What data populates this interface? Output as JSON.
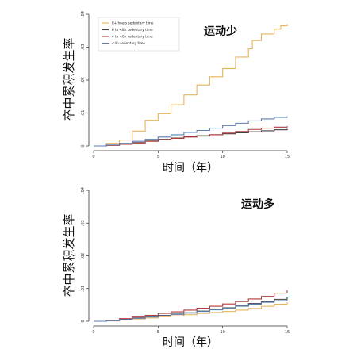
{
  "chart_data": [
    {
      "type": "line",
      "title": "",
      "annotation": "运动少",
      "xlabel": "时间（年）",
      "ylabel": "卒中累积发生率",
      "xlim": [
        0,
        15
      ],
      "ylim": [
        0,
        0.04
      ],
      "xticks": [
        "0",
        "5",
        "10",
        "15"
      ],
      "yticks": [
        "0",
        ".01",
        ".02",
        ".03",
        ".04"
      ],
      "legend_position": "top-left",
      "legend": [
        "8+ hours sedentary time",
        "6 to <8h sedentary time",
        "4 to <6h sedentary time",
        "<4h sedentary time"
      ],
      "series": [
        {
          "name": "8+ hours sedentary time",
          "color": "#e8b45a",
          "x": [
            0,
            1,
            2,
            3,
            4,
            5,
            6,
            7,
            8,
            9,
            10,
            11,
            12,
            12.3,
            13,
            14,
            14.5,
            15
          ],
          "y": [
            0,
            0.0008,
            0.0018,
            0.0045,
            0.0078,
            0.0098,
            0.0125,
            0.0155,
            0.0185,
            0.021,
            0.0235,
            0.027,
            0.0295,
            0.032,
            0.034,
            0.0355,
            0.0365,
            0.037
          ]
        },
        {
          "name": "6 to <8h sedentary time",
          "color": "#3f3f3f",
          "x": [
            0,
            1,
            2,
            3,
            4,
            5,
            6,
            7,
            8,
            9,
            10,
            11,
            12,
            13,
            14,
            15
          ],
          "y": [
            0,
            0.0002,
            0.0006,
            0.001,
            0.0015,
            0.002,
            0.0024,
            0.0028,
            0.0031,
            0.0034,
            0.0037,
            0.004,
            0.0043,
            0.0046,
            0.0049,
            0.0052
          ]
        },
        {
          "name": "4 to <6h sedentary time",
          "color": "#b23a3a",
          "x": [
            0,
            1,
            2,
            3,
            4,
            5,
            6,
            7,
            8,
            9,
            10,
            11,
            12,
            13,
            14,
            15
          ],
          "y": [
            0,
            0.0002,
            0.0005,
            0.0009,
            0.0014,
            0.0019,
            0.0023,
            0.0027,
            0.003,
            0.0034,
            0.0039,
            0.0044,
            0.005,
            0.0054,
            0.0057,
            0.006
          ]
        },
        {
          "name": "<4h sedentary time",
          "color": "#5b7fb0",
          "x": [
            0,
            1,
            2,
            3,
            4,
            5,
            6,
            7,
            8,
            9,
            10,
            11,
            12,
            13,
            14,
            15
          ],
          "y": [
            0,
            0.0003,
            0.0008,
            0.0014,
            0.002,
            0.0027,
            0.0034,
            0.0041,
            0.0047,
            0.0054,
            0.0062,
            0.0069,
            0.0076,
            0.0082,
            0.0087,
            0.009
          ]
        }
      ]
    },
    {
      "type": "line",
      "title": "",
      "annotation": "运动多",
      "xlabel": "时间（年）",
      "ylabel": "卒中累积发生率",
      "xlim": [
        0,
        15
      ],
      "ylim": [
        0,
        0.04
      ],
      "xticks": [
        "0",
        "5",
        "10",
        "15"
      ],
      "yticks": [
        "0",
        ".01",
        ".02",
        ".03",
        ".04"
      ],
      "series": [
        {
          "name": "8+ hours sedentary time",
          "color": "#e8b45a",
          "x": [
            0,
            1,
            2,
            3,
            4,
            5,
            6,
            7,
            8,
            9,
            10,
            11,
            12,
            13,
            14,
            15
          ],
          "y": [
            0,
            0.0001,
            0.0004,
            0.0007,
            0.001,
            0.0014,
            0.0017,
            0.002,
            0.0024,
            0.0027,
            0.003,
            0.0034,
            0.0039,
            0.0046,
            0.0052,
            0.0058
          ]
        },
        {
          "name": "6 to <8h sedentary time",
          "color": "#3f3f3f",
          "x": [
            0,
            1,
            2,
            3,
            4,
            5,
            6,
            7,
            8,
            9,
            10,
            11,
            12,
            13,
            14,
            15
          ],
          "y": [
            0,
            0.0002,
            0.0006,
            0.001,
            0.0014,
            0.0018,
            0.0022,
            0.0026,
            0.0031,
            0.0036,
            0.0041,
            0.0047,
            0.0054,
            0.006,
            0.0067,
            0.0073
          ]
        },
        {
          "name": "4 to <6h sedentary time",
          "color": "#b23a3a",
          "x": [
            0,
            1,
            2,
            3,
            4,
            5,
            6,
            7,
            8,
            9,
            10,
            11,
            12,
            13,
            14,
            15
          ],
          "y": [
            0,
            0.0003,
            0.0008,
            0.0013,
            0.0018,
            0.0024,
            0.0029,
            0.0034,
            0.004,
            0.0046,
            0.0053,
            0.006,
            0.0068,
            0.0076,
            0.0086,
            0.0095
          ]
        },
        {
          "name": "<4h sedentary time",
          "color": "#5b7fb0",
          "x": [
            0,
            1,
            2,
            3,
            4,
            5,
            6,
            7,
            8,
            9,
            10,
            11,
            12,
            13,
            14,
            15
          ],
          "y": [
            0,
            0.0002,
            0.0005,
            0.0009,
            0.0013,
            0.0017,
            0.0021,
            0.0025,
            0.003,
            0.0035,
            0.004,
            0.0046,
            0.0052,
            0.0058,
            0.0063,
            0.0068
          ]
        }
      ]
    }
  ]
}
